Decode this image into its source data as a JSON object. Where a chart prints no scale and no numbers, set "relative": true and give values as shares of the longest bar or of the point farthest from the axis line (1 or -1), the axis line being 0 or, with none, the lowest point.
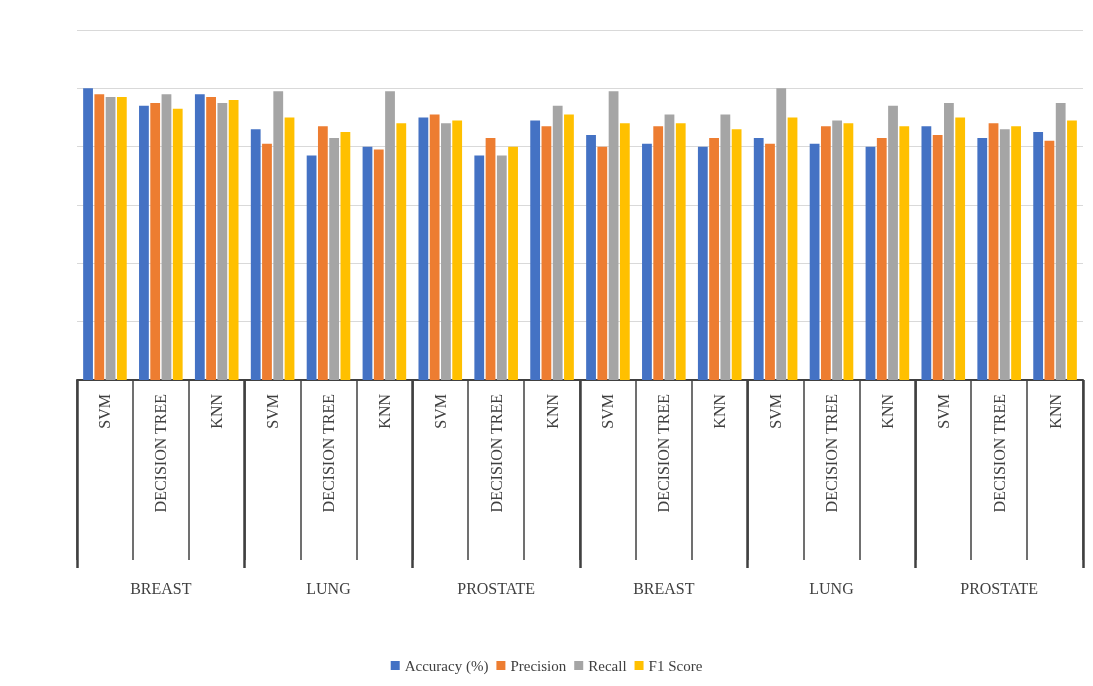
{
  "chart_data": {
    "type": "bar",
    "relative": true,
    "grid": "y",
    "legend": "bottom",
    "categories": [
      "SVM",
      "DECISION TREE",
      "KNN",
      "SVM",
      "DECISION TREE",
      "KNN",
      "SVM",
      "DECISION TREE",
      "KNN",
      "SVM",
      "DECISION TREE",
      "KNN",
      "SVM",
      "DECISION TREE",
      "KNN",
      "SVM",
      "DECISION TREE",
      "KNN"
    ],
    "annotations": [
      "BREAST",
      "LUNG",
      "PROSTATE",
      "BREAST",
      "LUNG",
      "PROSTATE"
    ],
    "series": [
      {
        "name": "Accuracy (%)",
        "color": "#4472c4",
        "values": [
          1.0,
          0.94,
          0.98,
          0.86,
          0.77,
          0.8,
          0.9,
          0.77,
          0.89,
          0.84,
          0.81,
          0.8,
          0.83,
          0.81,
          0.8,
          0.87,
          0.83,
          0.85
        ]
      },
      {
        "name": "Precision",
        "color": "#ed7d31",
        "values": [
          0.98,
          0.95,
          0.97,
          0.81,
          0.87,
          0.79,
          0.91,
          0.83,
          0.87,
          0.8,
          0.87,
          0.83,
          0.81,
          0.87,
          0.83,
          0.84,
          0.88,
          0.82
        ]
      },
      {
        "name": "Recall",
        "color": "#a5a5a5",
        "values": [
          0.97,
          0.98,
          0.95,
          0.99,
          0.83,
          0.99,
          0.88,
          0.77,
          0.94,
          0.99,
          0.91,
          0.91,
          1.0,
          0.89,
          0.94,
          0.95,
          0.86,
          0.95
        ]
      },
      {
        "name": "F1 Score",
        "color": "#ffc000",
        "values": [
          0.97,
          0.93,
          0.96,
          0.9,
          0.85,
          0.88,
          0.89,
          0.8,
          0.91,
          0.88,
          0.88,
          0.86,
          0.9,
          0.88,
          0.87,
          0.9,
          0.87,
          0.89
        ]
      }
    ]
  }
}
